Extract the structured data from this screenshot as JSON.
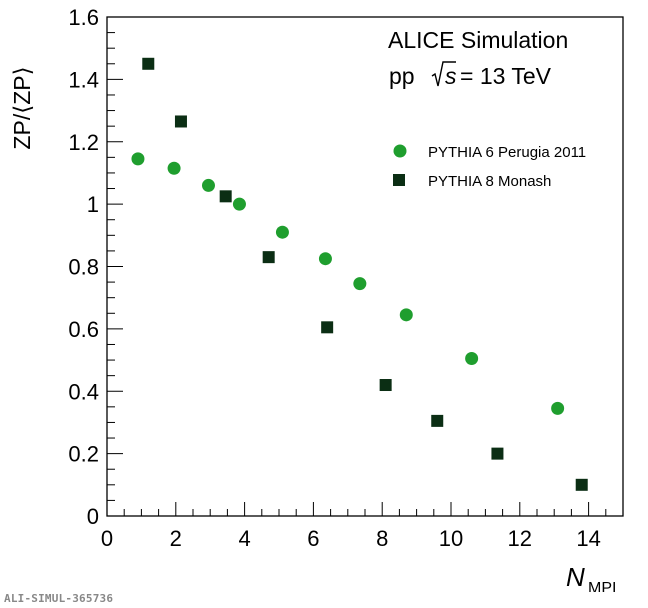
{
  "figure_id": "ALI-SIMUL-365736",
  "chart_data": {
    "type": "scatter",
    "header": {
      "line1": "ALICE Simulation",
      "system": "pp",
      "energy": "= 13 TeV"
    },
    "xlabel": "N",
    "xlabel_sub": "MPI",
    "ylabel": "ZP/⟨ZP⟩",
    "xlim": [
      0,
      15
    ],
    "ylim": [
      0,
      1.6
    ],
    "x_ticks": [
      "0",
      "2",
      "4",
      "6",
      "8",
      "10",
      "12",
      "14"
    ],
    "y_ticks": [
      "0",
      "0.2",
      "0.4",
      "0.6",
      "0.8",
      "1",
      "1.2",
      "1.4",
      "1.6"
    ],
    "legend_position": "top-right",
    "series": [
      {
        "name": "PYTHIA 6 Perugia 2011",
        "marker": "circle",
        "color": "#1f9e2e",
        "points": [
          {
            "x": 0.9,
            "y": 1.145
          },
          {
            "x": 1.95,
            "y": 1.115
          },
          {
            "x": 2.95,
            "y": 1.06
          },
          {
            "x": 3.85,
            "y": 1.0
          },
          {
            "x": 5.1,
            "y": 0.91
          },
          {
            "x": 6.35,
            "y": 0.825
          },
          {
            "x": 7.35,
            "y": 0.745
          },
          {
            "x": 8.7,
            "y": 0.645
          },
          {
            "x": 10.6,
            "y": 0.505
          },
          {
            "x": 13.1,
            "y": 0.345
          }
        ]
      },
      {
        "name": "PYTHIA 8 Monash",
        "marker": "square",
        "color": "#0b2e14",
        "points": [
          {
            "x": 1.2,
            "y": 1.45
          },
          {
            "x": 2.15,
            "y": 1.265
          },
          {
            "x": 3.45,
            "y": 1.025
          },
          {
            "x": 4.7,
            "y": 0.83
          },
          {
            "x": 6.4,
            "y": 0.605
          },
          {
            "x": 8.1,
            "y": 0.42
          },
          {
            "x": 9.6,
            "y": 0.305
          },
          {
            "x": 11.35,
            "y": 0.2
          },
          {
            "x": 13.8,
            "y": 0.1
          }
        ]
      }
    ]
  }
}
